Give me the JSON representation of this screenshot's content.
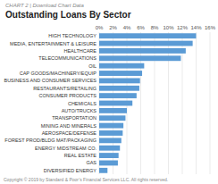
{
  "chart_data": {
    "type": "bar",
    "orientation": "horizontal",
    "title": "Outstanding Loans By Sector",
    "subtitle": "CHART 2  |  Download Chart Data",
    "annotations": [
      "Copyright © 2019 by Standard & Poor’s Financial Services LLC.  All rights reserved."
    ],
    "categories": [
      "HIGH TECHNOLOGY",
      "MEDIA, ENTERTAINMENT & LEISURE",
      "HEALTHCARE",
      "TELECOMMUNICATIONS",
      "OIL",
      "CAP GOODS/MACHINERY/EQUIP",
      "BUSINESS AND CONSUMER SERVICES",
      "RESTAURANTS/RETAILING",
      "CONSUMER PRODUCTS",
      "CHEMICALS",
      "AUTO/TRUCKS",
      "TRANSPORTATION",
      "MINING AND MINERALS",
      "AEROSPACE/DEFENSE",
      "FOREST PROD/BLDG MAT/PACKAGING",
      "ENERGY MIDSTREAM CO.",
      "REAL ESTATE",
      "GAS",
      "DIVERSIFIED ENERGY"
    ],
    "values": [
      14.0,
      13.5,
      12.5,
      11.8,
      6.5,
      6.2,
      5.9,
      5.8,
      5.4,
      4.8,
      4.0,
      3.8,
      3.5,
      3.4,
      3.2,
      3.0,
      2.8,
      2.7,
      1.2
    ],
    "color": "#5b9bd5",
    "xlim": [
      0,
      16
    ],
    "xticks": [
      {
        "value": 0,
        "label": "0%"
      },
      {
        "value": 2,
        "label": "2%"
      },
      {
        "value": 4,
        "label": "4%"
      },
      {
        "value": 6,
        "label": "6%"
      },
      {
        "value": 8,
        "label": "8%"
      },
      {
        "value": 10,
        "label": "10%"
      },
      {
        "value": 12,
        "label": "12%"
      },
      {
        "value": 14,
        "label": "14%"
      },
      {
        "value": 16,
        "label": "16%"
      }
    ],
    "grid": true
  }
}
